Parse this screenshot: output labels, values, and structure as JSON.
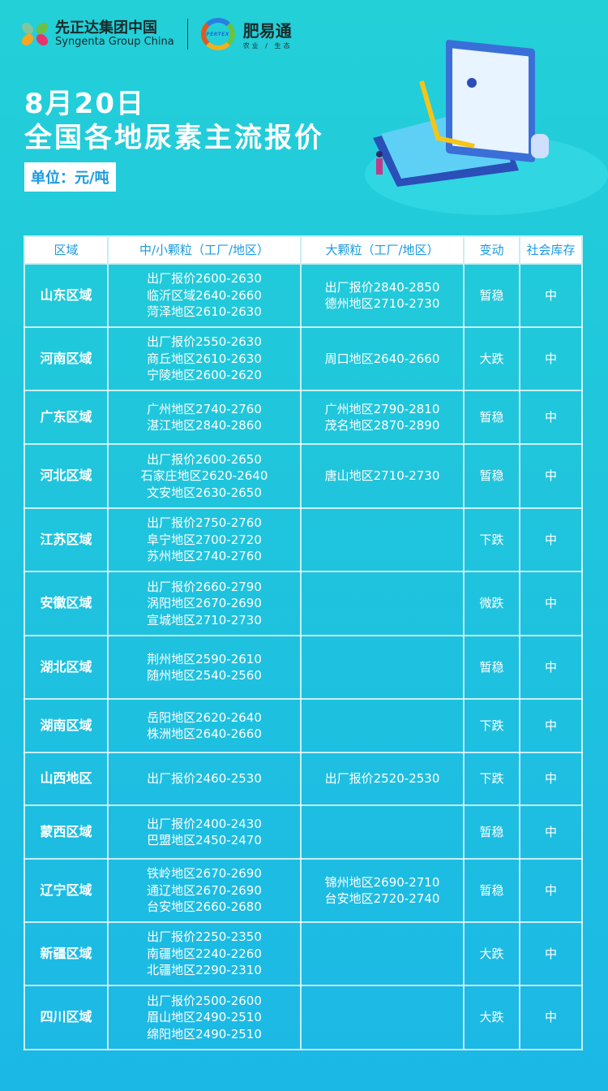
{
  "header": {
    "brand_cn": "先正达集团中国",
    "brand_en": "Syngenta Group China",
    "partner_cn": "肥易通",
    "partner_sub": "农业 / 生态",
    "partner_logo_text": "FERTEX",
    "date": "8月20日",
    "title": "全国各地尿素主流报价",
    "unit": "单位：元/吨"
  },
  "colors": {
    "header_text": "#1a9be0",
    "bg_top": "#23d0d8",
    "bg_bottom": "#1bb8e6"
  },
  "table": {
    "columns": [
      "区域",
      "中/小颗粒（工厂/地区）",
      "大颗粒（工厂/地区）",
      "变动",
      "社会库存"
    ],
    "rows": [
      {
        "region": "山东区域",
        "small": [
          "出厂报价2600-2630",
          "临沂区域2640-2660",
          "菏泽地区2610-2630"
        ],
        "large": [
          "出厂报价2840-2850",
          "德州地区2710-2730"
        ],
        "change": "暂稳",
        "stock": "中"
      },
      {
        "region": "河南区域",
        "small": [
          "出厂报价2550-2630",
          "商丘地区2610-2630",
          "宁陵地区2600-2620"
        ],
        "large": [
          "周口地区2640-2660"
        ],
        "change": "大跌",
        "stock": "中"
      },
      {
        "region": "广东区域",
        "small": [
          "广州地区2740-2760",
          "湛江地区2840-2860"
        ],
        "large": [
          "广州地区2790-2810",
          "茂名地区2870-2890"
        ],
        "change": "暂稳",
        "stock": "中"
      },
      {
        "region": "河北区域",
        "small": [
          "出厂报价2600-2650",
          "石家庄地区2620-2640",
          "文安地区2630-2650"
        ],
        "large": [
          "唐山地区2710-2730"
        ],
        "change": "暂稳",
        "stock": "中"
      },
      {
        "region": "江苏区域",
        "small": [
          "出厂报价2750-2760",
          "阜宁地区2700-2720",
          "苏州地区2740-2760"
        ],
        "large": [],
        "change": "下跌",
        "stock": "中"
      },
      {
        "region": "安徽区域",
        "small": [
          "出厂报价2660-2790",
          "涡阳地区2670-2690",
          "宣城地区2710-2730"
        ],
        "large": [],
        "change": "微跌",
        "stock": "中"
      },
      {
        "region": "湖北区域",
        "small": [
          "荆州地区2590-2610",
          "随州地区2540-2560"
        ],
        "large": [],
        "change": "暂稳",
        "stock": "中"
      },
      {
        "region": "湖南区域",
        "small": [
          "岳阳地区2620-2640",
          "株洲地区2640-2660"
        ],
        "large": [],
        "change": "下跌",
        "stock": "中"
      },
      {
        "region": "山西地区",
        "small": [
          "出厂报价2460-2530"
        ],
        "large": [
          "出厂报价2520-2530"
        ],
        "change": "下跌",
        "stock": "中"
      },
      {
        "region": "蒙西区域",
        "small": [
          "出厂报价2400-2430",
          "巴盟地区2450-2470"
        ],
        "large": [],
        "change": "暂稳",
        "stock": "中"
      },
      {
        "region": "辽宁区域",
        "small": [
          "铁岭地区2670-2690",
          "通辽地区2670-2690",
          "台安地区2660-2680"
        ],
        "large": [
          "锦州地区2690-2710",
          "台安地区2720-2740"
        ],
        "change": "暂稳",
        "stock": "中"
      },
      {
        "region": "新疆区域",
        "small": [
          "出厂报价2250-2350",
          "南疆地区2240-2260",
          "北疆地区2290-2310"
        ],
        "large": [],
        "change": "大跌",
        "stock": "中"
      },
      {
        "region": "四川区域",
        "small": [
          "出厂报价2500-2600",
          "眉山地区2490-2510",
          "绵阳地区2490-2510"
        ],
        "large": [],
        "change": "大跌",
        "stock": "中"
      }
    ]
  }
}
